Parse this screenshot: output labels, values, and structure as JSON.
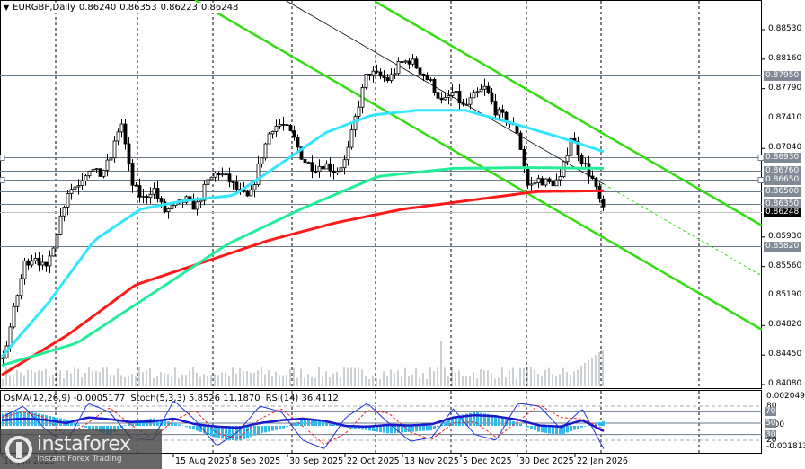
{
  "header": {
    "symbol_timeframe": "EURGBP,Daily",
    "open": "0.86240",
    "high": "0.86353",
    "low": "0.86223",
    "close": "0.86248"
  },
  "indicator_header": {
    "osma": "OsMA(12,26,9) -0.0005177",
    "stoch": "Stoch(5,3,3) 5.8526 11.1870",
    "rsi": "RSI(14) 36.4112"
  },
  "price_axis": {
    "ticks": [
      "0.88530",
      "0.88160",
      "0.87790",
      "0.87410",
      "0.87040",
      "0.85930",
      "0.85560",
      "0.85190",
      "0.84820",
      "0.84450",
      "0.84080"
    ]
  },
  "levels": [
    {
      "price": "0.87950",
      "kind": "level"
    },
    {
      "price": "0.86930",
      "kind": "level"
    },
    {
      "price": "0.86760",
      "kind": "level"
    },
    {
      "price": "0.86650",
      "kind": "level"
    },
    {
      "price": "0.86500",
      "kind": "level"
    },
    {
      "price": "0.86350",
      "kind": "level"
    },
    {
      "price": "0.86248",
      "kind": "current"
    },
    {
      "price": "0.85820",
      "kind": "level"
    }
  ],
  "indicator_axis": {
    "top": "0.0020491",
    "zero": "0.00",
    "bottom": "-0.001813",
    "levels": [
      "80",
      "70",
      "50",
      "30",
      "20"
    ]
  },
  "date_axis": [
    "10 Jun 2025",
    "15 Aug 2025",
    "8 Sep 2025",
    "30 Sep 2025",
    "22 Oct 2025",
    "13 Nov 2025",
    "5 Dec 2025",
    "30 Dec 2025",
    "22 Jan 2026"
  ],
  "watermark": {
    "brand": "instaforex",
    "tagline": "Instant Forex Trading"
  },
  "colors": {
    "ma_fast": "#33e6ff",
    "ma_mid": "#22ee99",
    "ma_slow": "#ff1a1a",
    "channel": "#33dd11",
    "level_line": "#6b7a89",
    "histogram": "#33bbee",
    "signal": "#1a1acc",
    "stoch_main": "#2233dd",
    "stoch_signal": "#ee2222"
  },
  "chart_data": {
    "type": "candlestick",
    "symbol": "EURGBP",
    "timeframe": "Daily",
    "ylim": [
      0.8408,
      0.8853
    ],
    "close_path": [
      0.844,
      0.85,
      0.856,
      0.857,
      0.855,
      0.86,
      0.865,
      0.866,
      0.868,
      0.867,
      0.869,
      0.874,
      0.866,
      0.864,
      0.8655,
      0.8625,
      0.863,
      0.864,
      0.863,
      0.866,
      0.8675,
      0.8665,
      0.865,
      0.864,
      0.869,
      0.873,
      0.8735,
      0.872,
      0.869,
      0.868,
      0.8685,
      0.8675,
      0.869,
      0.875,
      0.88,
      0.8795,
      0.879,
      0.881,
      0.8815,
      0.88,
      0.8785,
      0.876,
      0.8775,
      0.8755,
      0.877,
      0.878,
      0.875,
      0.874,
      0.8725,
      0.8655,
      0.8665,
      0.866,
      0.8665,
      0.872,
      0.869,
      0.8665,
      0.8625
    ],
    "ma_fast": [
      0.8443,
      0.851,
      0.8589,
      0.8628,
      0.8639,
      0.8645,
      0.8684,
      0.8724,
      0.8746,
      0.8752,
      0.8752,
      0.8736,
      0.8719,
      0.87
    ],
    "ma_mid": [
      0.8432,
      0.846,
      0.8522,
      0.8584,
      0.8629,
      0.8669,
      0.8679,
      0.868,
      0.8679
    ],
    "ma_slow": [
      0.842,
      0.8471,
      0.8533,
      0.8561,
      0.8589,
      0.8611,
      0.8628,
      0.8639,
      0.865,
      0.8651
    ],
    "osma_histogram_e4": [
      8,
      10,
      7,
      4,
      -2,
      -6,
      3,
      5,
      2,
      -3,
      -8,
      -10,
      -5,
      -2,
      4,
      3,
      -1,
      -3,
      -5,
      -4,
      -3,
      6,
      9,
      7,
      2,
      -4,
      -6,
      -1,
      3
    ],
    "stoch": [
      60,
      80,
      40,
      15,
      85,
      70,
      25,
      20,
      90,
      55,
      10,
      35,
      80,
      70,
      20,
      5,
      60,
      85,
      50,
      18,
      25,
      75,
      30,
      20,
      85,
      80,
      40,
      75,
      5
    ],
    "rsi": [
      55,
      58,
      56,
      50,
      60,
      57,
      52,
      53,
      58,
      48,
      44,
      42,
      50,
      55,
      58,
      54,
      45,
      44,
      47,
      46,
      48,
      60,
      64,
      62,
      56,
      46,
      44,
      55,
      36
    ]
  }
}
